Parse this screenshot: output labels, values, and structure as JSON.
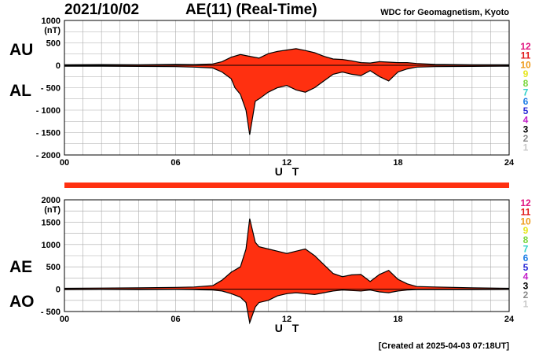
{
  "header": {
    "date": "2021/10/02",
    "title": "AE(11) (Real-Time)",
    "organization": "WDC for Geomagnetism, Kyoto"
  },
  "footer": {
    "created": "[Created at 2025-04-03 07:18UT]"
  },
  "legend_numbers": [
    {
      "text": "12",
      "color": "#e0147f"
    },
    {
      "text": "11",
      "color": "#e11a1a"
    },
    {
      "text": "10",
      "color": "#ee9a1a"
    },
    {
      "text": "9",
      "color": "#e6e61e"
    },
    {
      "text": "8",
      "color": "#7ad63c"
    },
    {
      "text": "7",
      "color": "#2ed0c8"
    },
    {
      "text": "6",
      "color": "#1e7ee6"
    },
    {
      "text": "5",
      "color": "#2a2ad6"
    },
    {
      "text": "4",
      "color": "#c21ec8"
    },
    {
      "text": "3",
      "color": "#000000"
    },
    {
      "text": "2",
      "color": "#8a8a8a"
    },
    {
      "text": "1",
      "color": "#c8c8c8"
    }
  ],
  "colors": {
    "fill": "#ff3010",
    "outline": "#000000",
    "grid": "#aaaaaa",
    "bar": "#ff3010"
  },
  "chart_data": [
    {
      "type": "area",
      "series_labels": [
        "AU",
        "AL"
      ],
      "unit": "(nT)",
      "xlabel": "U T",
      "x_ticks": [
        "00",
        "06",
        "12",
        "18",
        "24"
      ],
      "y_ticks": [
        "1000",
        "500",
        "0",
        "- 500",
        "- 1000",
        "- 1500",
        "- 2000"
      ],
      "xlim": [
        0,
        24
      ],
      "ylim": [
        -2000,
        1000
      ],
      "grid": true,
      "series": [
        {
          "name": "AU",
          "x": [
            0,
            2,
            4,
            6,
            7,
            8,
            8.5,
            9,
            9.5,
            10,
            10.5,
            11,
            11.5,
            12,
            12.5,
            13,
            13.5,
            14,
            14.5,
            15,
            15.5,
            16,
            16.5,
            17,
            17.5,
            18,
            18.5,
            19,
            20,
            22,
            24
          ],
          "values": [
            10,
            15,
            10,
            20,
            15,
            30,
            80,
            180,
            240,
            200,
            160,
            260,
            310,
            340,
            370,
            330,
            280,
            200,
            140,
            130,
            100,
            60,
            50,
            80,
            70,
            60,
            60,
            40,
            20,
            10,
            10
          ]
        },
        {
          "name": "AL",
          "x": [
            0,
            2,
            4,
            6,
            7,
            8,
            8.5,
            9,
            9.2,
            9.5,
            9.8,
            10,
            10.3,
            10.5,
            11,
            11.5,
            12,
            12.5,
            13,
            13.5,
            14,
            14.5,
            15,
            15.5,
            16,
            16.5,
            17,
            17.5,
            18,
            18.5,
            19,
            20,
            22,
            24
          ],
          "values": [
            -20,
            -20,
            -25,
            -30,
            -40,
            -60,
            -150,
            -300,
            -500,
            -650,
            -1000,
            -1550,
            -800,
            -750,
            -600,
            -500,
            -450,
            -550,
            -600,
            -500,
            -350,
            -200,
            -150,
            -200,
            -230,
            -120,
            -250,
            -350,
            -150,
            -80,
            -40,
            -30,
            -25,
            -20
          ]
        }
      ]
    },
    {
      "type": "area",
      "series_labels": [
        "AE",
        "AO"
      ],
      "unit": "(nT)",
      "xlabel": "U T",
      "x_ticks": [
        "00",
        "06",
        "12",
        "18",
        "24"
      ],
      "y_ticks": [
        "2000",
        "1500",
        "1000",
        "500",
        "0",
        "- 500"
      ],
      "xlim": [
        0,
        24
      ],
      "ylim": [
        -500,
        2000
      ],
      "grid": true,
      "series": [
        {
          "name": "AE",
          "x": [
            0,
            2,
            4,
            6,
            7,
            8,
            8.5,
            9,
            9.5,
            9.8,
            10,
            10.3,
            10.5,
            11,
            11.5,
            12,
            12.5,
            13,
            13.5,
            14,
            14.5,
            15,
            15.5,
            16,
            16.5,
            17,
            17.5,
            18,
            18.5,
            19,
            20,
            22,
            24
          ],
          "values": [
            20,
            25,
            30,
            40,
            50,
            80,
            200,
            380,
            500,
            900,
            1580,
            1050,
            950,
            900,
            850,
            800,
            850,
            900,
            750,
            550,
            350,
            280,
            320,
            330,
            170,
            330,
            420,
            220,
            120,
            60,
            50,
            30,
            20
          ]
        },
        {
          "name": "AO",
          "x": [
            0,
            2,
            4,
            6,
            7,
            8,
            8.5,
            9,
            9.5,
            9.8,
            10,
            10.3,
            10.5,
            11,
            11.5,
            12,
            12.5,
            13,
            13.5,
            14,
            14.5,
            15,
            15.5,
            16,
            16.5,
            17,
            17.5,
            18,
            18.5,
            19,
            20,
            22,
            24
          ],
          "values": [
            -10,
            -5,
            -10,
            -5,
            -10,
            -20,
            -40,
            -100,
            -180,
            -300,
            -750,
            -400,
            -300,
            -250,
            -150,
            -100,
            -80,
            -100,
            -120,
            -80,
            -40,
            -20,
            -30,
            -40,
            -20,
            -60,
            -80,
            -40,
            -20,
            -10,
            -10,
            -10,
            -5
          ]
        }
      ]
    }
  ]
}
